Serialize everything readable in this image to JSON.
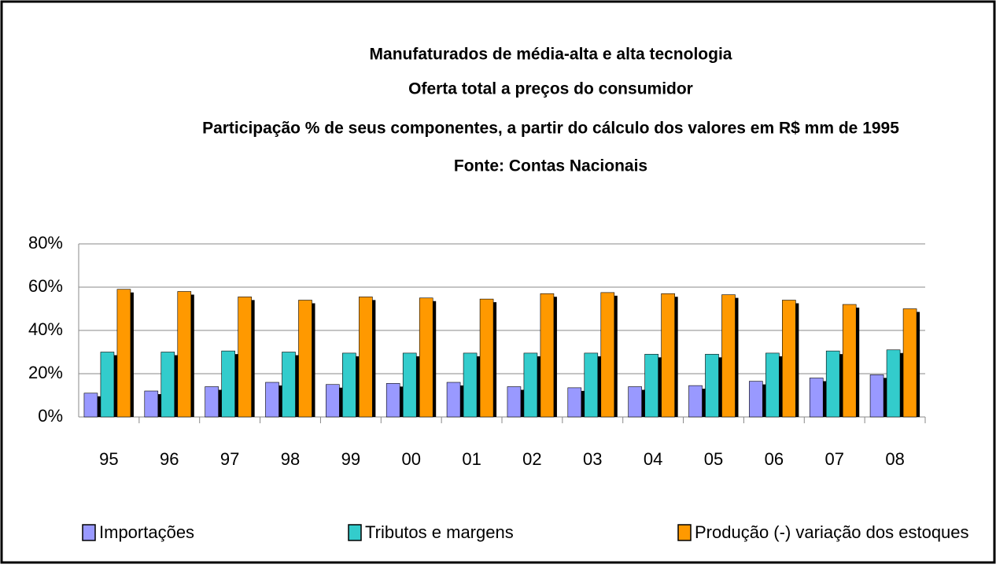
{
  "chart_data": {
    "type": "bar",
    "title": "Manufaturados de média-alta e alta tecnologia",
    "subtitle": [
      "Oferta total a preços do consumidor",
      "Participação % de seus componentes, a partir do cálculo dos valores em R$ mm de 1995",
      "Fonte: Contas Nacionais"
    ],
    "categories": [
      "95",
      "96",
      "97",
      "98",
      "99",
      "00",
      "01",
      "02",
      "03",
      "04",
      "05",
      "06",
      "07",
      "08"
    ],
    "series": [
      {
        "name": "Importações",
        "color": "#9999ff",
        "values": [
          11,
          12,
          14,
          16,
          15,
          15.5,
          16,
          14,
          13.5,
          14,
          14.5,
          16.5,
          18,
          19.5
        ]
      },
      {
        "name": "Tributos e margens",
        "color": "#33cccc",
        "values": [
          30,
          30,
          30.5,
          30,
          29.5,
          29.5,
          29.5,
          29.5,
          29.5,
          29,
          29,
          29.5,
          30.5,
          31
        ]
      },
      {
        "name": "Produção (-) variação dos estoques",
        "color": "#ff9900",
        "values": [
          59,
          58,
          55.5,
          54,
          55.5,
          55,
          54.5,
          57,
          57.5,
          57,
          56.5,
          54,
          52,
          50
        ]
      }
    ],
    "ylim": [
      0,
      80
    ],
    "yticks": [
      {
        "value": 0,
        "label": "0%"
      },
      {
        "value": 20,
        "label": "20%"
      },
      {
        "value": 40,
        "label": "40%"
      },
      {
        "value": 60,
        "label": "60%"
      },
      {
        "value": 80,
        "label": "80%"
      }
    ],
    "grid": true,
    "legend": "bottom"
  }
}
